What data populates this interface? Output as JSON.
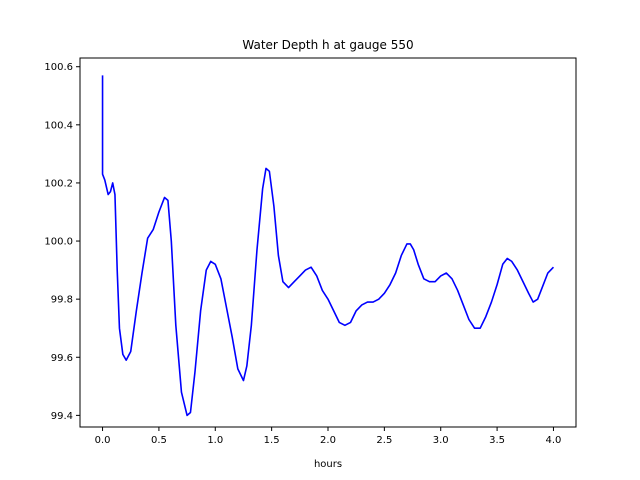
{
  "chart_data": {
    "type": "line",
    "title": "Water Depth h at gauge 550",
    "xlabel": "hours",
    "ylabel": "",
    "xlim": [
      -0.2,
      4.2
    ],
    "ylim": [
      99.36,
      100.63
    ],
    "xticks": [
      0.0,
      0.5,
      1.0,
      1.5,
      2.0,
      2.5,
      3.0,
      3.5,
      4.0
    ],
    "xtick_labels": [
      "0.0",
      "0.5",
      "1.0",
      "1.5",
      "2.0",
      "2.5",
      "3.0",
      "3.5",
      "4.0"
    ],
    "yticks": [
      99.4,
      99.6,
      99.8,
      100.0,
      100.2,
      100.4,
      100.6
    ],
    "ytick_labels": [
      "99.4",
      "99.6",
      "99.8",
      "100.0",
      "100.2",
      "100.4",
      "100.6"
    ],
    "grid": false,
    "series": [
      {
        "color": "#0000ff",
        "x": [
          0.0,
          0.0,
          0.0,
          0.02,
          0.05,
          0.07,
          0.09,
          0.11,
          0.13,
          0.15,
          0.18,
          0.21,
          0.25,
          0.3,
          0.35,
          0.4,
          0.45,
          0.5,
          0.55,
          0.58,
          0.61,
          0.65,
          0.7,
          0.75,
          0.78,
          0.82,
          0.87,
          0.92,
          0.96,
          1.0,
          1.05,
          1.1,
          1.15,
          1.2,
          1.25,
          1.28,
          1.32,
          1.37,
          1.42,
          1.45,
          1.48,
          1.52,
          1.56,
          1.6,
          1.65,
          1.7,
          1.75,
          1.8,
          1.85,
          1.9,
          1.95,
          2.0,
          2.05,
          2.1,
          2.15,
          2.2,
          2.25,
          2.3,
          2.35,
          2.4,
          2.45,
          2.5,
          2.55,
          2.6,
          2.65,
          2.7,
          2.73,
          2.76,
          2.8,
          2.85,
          2.9,
          2.95,
          3.0,
          3.05,
          3.1,
          3.15,
          3.2,
          3.25,
          3.3,
          3.35,
          3.4,
          3.45,
          3.5,
          3.55,
          3.59,
          3.63,
          3.68,
          3.73,
          3.78,
          3.82,
          3.86,
          3.9,
          3.95,
          4.0
        ],
        "y": [
          100.57,
          100.23,
          100.23,
          100.21,
          100.16,
          100.17,
          100.2,
          100.16,
          99.9,
          99.7,
          99.61,
          99.59,
          99.62,
          99.76,
          99.89,
          100.01,
          100.04,
          100.1,
          100.15,
          100.14,
          100.0,
          99.71,
          99.48,
          99.4,
          99.41,
          99.55,
          99.76,
          99.9,
          99.93,
          99.92,
          99.87,
          99.77,
          99.67,
          99.56,
          99.52,
          99.57,
          99.71,
          99.97,
          100.18,
          100.25,
          100.24,
          100.12,
          99.95,
          99.86,
          99.84,
          99.86,
          99.88,
          99.9,
          99.91,
          99.88,
          99.83,
          99.8,
          99.76,
          99.72,
          99.71,
          99.72,
          99.76,
          99.78,
          99.79,
          99.79,
          99.8,
          99.82,
          99.85,
          99.89,
          99.95,
          99.99,
          99.99,
          99.97,
          99.92,
          99.87,
          99.86,
          99.86,
          99.88,
          99.89,
          99.87,
          99.83,
          99.78,
          99.73,
          99.7,
          99.7,
          99.74,
          99.79,
          99.85,
          99.92,
          99.94,
          99.93,
          99.9,
          99.86,
          99.82,
          99.79,
          99.8,
          99.84,
          99.89,
          99.91
        ]
      }
    ]
  }
}
